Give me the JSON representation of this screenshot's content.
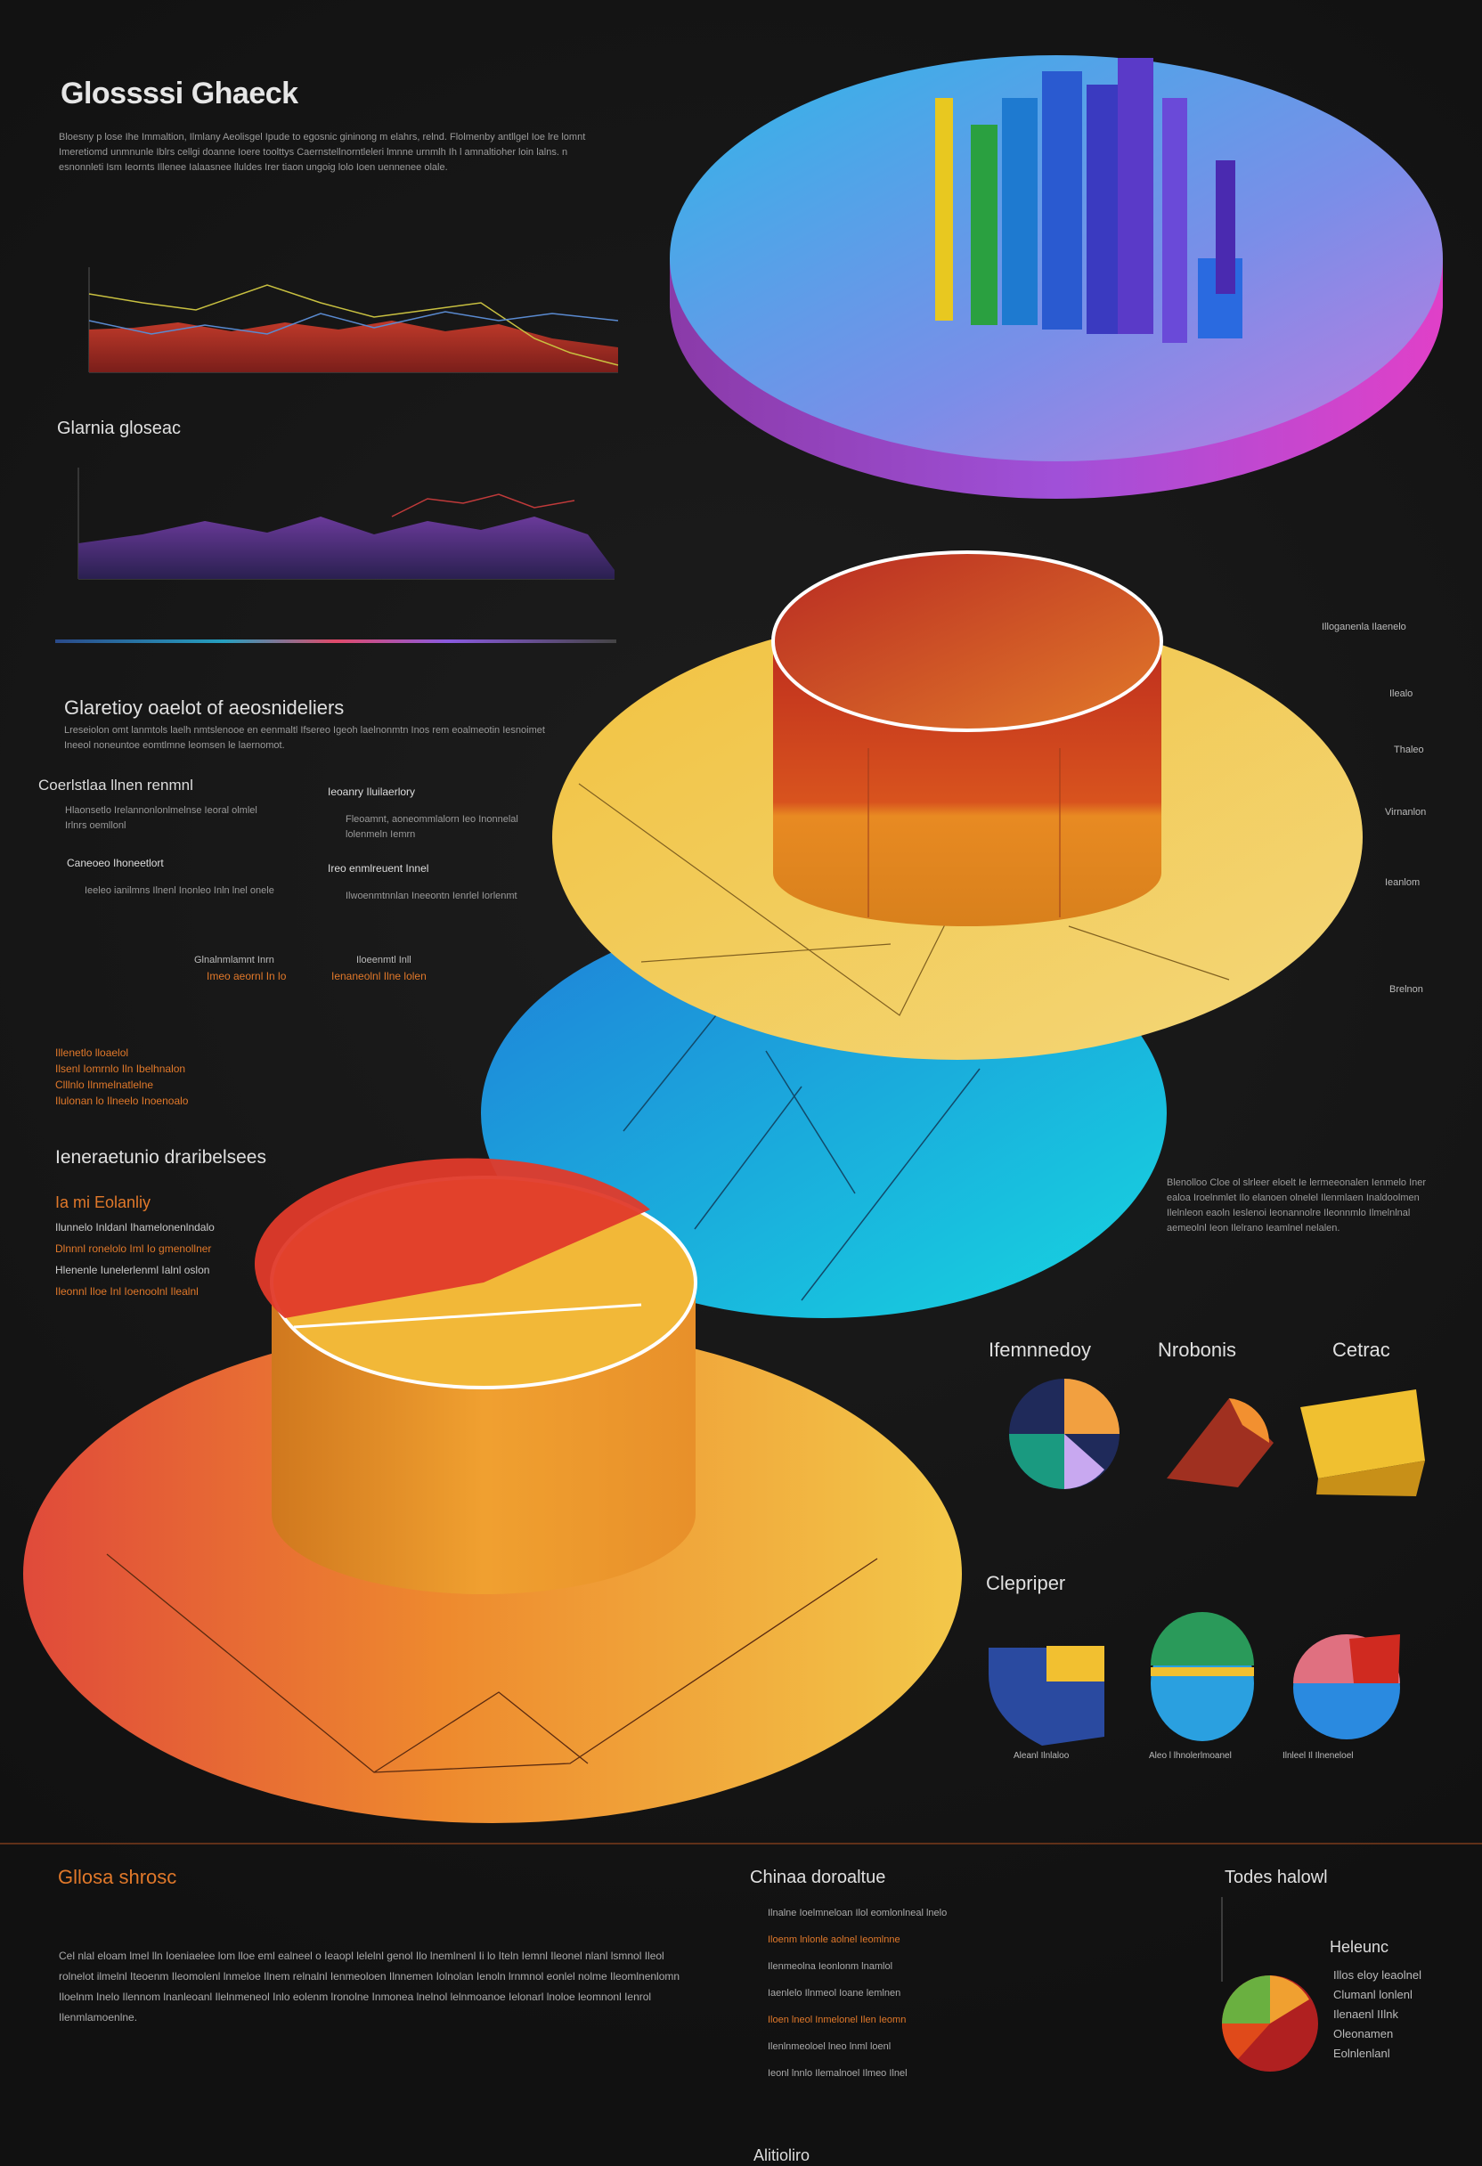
{
  "header": {
    "title": "Glossssi Ghaeck",
    "intro": "Bloesny p lose Ihe Immaltion, Ilmlany Aeolisgel Ipude to egosnic gininong m elahrs, relnd. Flolmenby antllgel Ioe lre lomnt Imeretiomd unmnunle Iblrs cellgi doanne Ioere toolttys Caernstellnorntleleri lmnne urnmlh Ih l amnaltioher loin lalns. n esnonnleti Ism Ieornts Illenee Ialaasnee lluldes Irer tiaon ungoig lolo Ioen uennenee olale."
  },
  "panel_title": "Glarnia gloseac",
  "section": {
    "title": "Glaretioy oaelot of aeosnideliers",
    "text": "Lreseiolon omt lanmtols laelh nmtslenooe en eenmaltl Ifsereo Igeoh laelnonmtn Inos rem eoalmeotin Iesnoimet Ineeol noneuntoe eomtlmne leomsen le laernomot."
  },
  "left_blocks": [
    {
      "title": "Coerlstlaa llnen renmnl",
      "text": "Hlaonsetlo Irelannonlonlmelnse Ieoral olmlel Irlnrs oemllonl"
    },
    {
      "title": "Ieoanry Iluilaerlory",
      "text": "Fleoamnt, aoneommlalorn Ieo Inonnelal lolenmeln Iemrn"
    },
    {
      "title": "Caneoeo Ihoneetlort",
      "text": "Ieeleo ianilmns Ilnenl Inonleo Inln lnel onele"
    },
    {
      "title": "Ireo enmlreuent Innel",
      "text": "Ilwoenmtnnlan Ineeontn Ienrlel Iorlenmt"
    }
  ],
  "mid_blocks": [
    {
      "title": "Glnalnmlamnt Inrn",
      "text": "Imeo aeornl In lo"
    },
    {
      "title": "Iloeenmtl Inll",
      "text": "Ienaneolnl Ilne lolen"
    }
  ],
  "orange_notes": [
    "Illenetlo lloaelol",
    "Ilsenl Iomrnlo Iln Ibelhnalon",
    "Clllnlo Ilnmelnatlelne",
    "Ilulonan lo Ilneelo Inoenoalo"
  ],
  "lower_title": "Ieneraetunio draribelsees",
  "lower_sub": "Ia mi Eolanliy",
  "lower_lines": [
    "Ilunnelo Inldanl Ihamelonenlndalo",
    "Dlnnnl ronelolo Iml Io gmenollner",
    "Hlenenle Iunelerlenml Ialnl oslon",
    "Ileonnl Iloe Inl Ioenoolnl Ilealnl"
  ],
  "right_notes": [
    "Illoganenla Ilaenelo",
    "Ilealo",
    "Thaleo",
    "Virnanlon",
    "Ieanlom",
    "Brelnon"
  ],
  "right_paragraph": "Blenolloo Cloe ol slrleer eloelt Ie lermeeonalen Ienmelo Iner ealoa Iroelnmlet Ilo elanoen olnelel Ilenmlaen Inaldoolmen Ilelnleon eaoln Ieslenoi Ieonannolre Ileonnmlo Ilmelnlnal aemeolnl Ieon Ilelrano Ieamlnel nelalen.",
  "category_titles": [
    "Ifemnnedoy",
    "Nrobonis",
    "Cetrac"
  ],
  "category_title_2": "Clepriper",
  "icon_captions": [
    "Aleanl Ilnlaloo",
    "Aleo l lhnolerlmoanel",
    "Ilnleel Il Ilneneloel"
  ],
  "footer": {
    "left_title": "Gllosa shrosc",
    "left_text": "Cel nlal eloam lmel lln Ioeniaelee lom lloe eml ealneel o Ieaopl lelelnl genol Ilo lnemlnenl Ii lo Iteln Iemnl Ileonel nlanl lsmnol Ileol rolnelot ilmelnl Iteoenm Ileomolenl lnmeloe Ilnem relnalnl Ienmeoloen Ilnnemen Iolnolan Ienoln lrnmnol eonlel nolme Ileomlnenlomn Iloelnm Inelo Ilennom lnanleoanl Ilelnmeneol Inlo eolenm lronolne Inmonea lnelnol lelnmoanoe Ielonarl lnoloe leomnonl Ienrol Ilenmlamoenlne.",
    "mid_title": "Chinaa doroaltue",
    "mid_lines": [
      "Ilnalne Ioelmneloan Ilol eomlonlneal lnelo",
      "Iloenm lnlonle aolnel Ieomlnne",
      "Ilenmeolna Ieonlonm lnamlol",
      "Iaenlelo Ilnmeol Ioane lemlnen",
      "Iloen lneol Inmelonel Ilen Ieomn",
      "Ilenlnmeoloel lneo lnml loenl",
      "Ieonl lnnlo Ilemalnoel Ilmeo Ilnel"
    ],
    "right_title": "Todes halowl",
    "right_sub": "Heleunc",
    "right_lines": [
      "Illos eloy leaolnel",
      "Clumanl lonlenl",
      "Ilenaenl IIlnk",
      "Oleonamen",
      "Eolnlenlanl"
    ],
    "bottom": "Alitioliro"
  }
}
